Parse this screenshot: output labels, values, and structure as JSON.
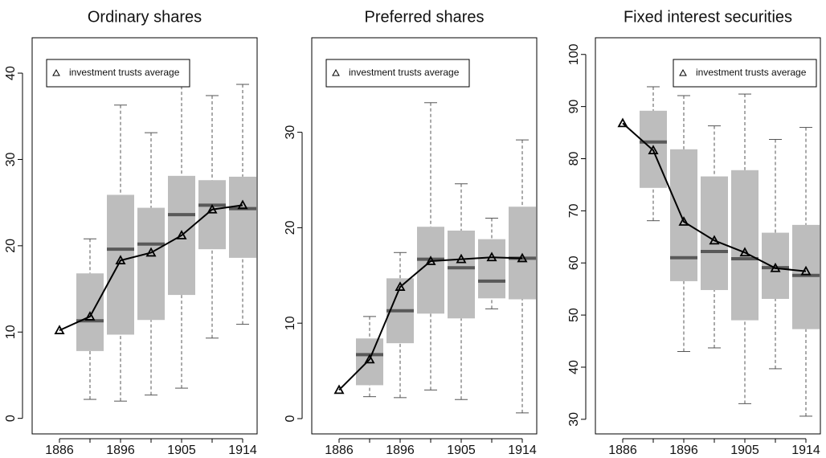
{
  "chart_data": [
    {
      "type": "box",
      "title": "Ordinary shares",
      "legend": "top-left",
      "box_color": "#bdbdbd",
      "median_color": "#595959",
      "categories": [
        "1886",
        null,
        "1896",
        null,
        "1905",
        null,
        "1914"
      ],
      "ylim": [
        -1.8,
        44.1
      ],
      "yticks": [
        0,
        10,
        20,
        30,
        40
      ],
      "boxes": {
        "low": [
          null,
          2.2,
          2.0,
          2.7,
          3.5,
          9.3,
          10.9
        ],
        "q1": [
          null,
          7.8,
          9.7,
          11.4,
          14.3,
          19.6,
          18.6
        ],
        "median": [
          null,
          11.3,
          19.6,
          20.2,
          23.6,
          24.7,
          24.3
        ],
        "q3": [
          null,
          16.8,
          25.9,
          24.4,
          28.1,
          27.6,
          28.0
        ],
        "high": [
          null,
          20.8,
          36.3,
          33.1,
          39.8,
          37.4,
          38.7
        ]
      },
      "series": [
        {
          "name": "investment trusts average",
          "color": "#000000",
          "values": [
            10.2,
            11.8,
            18.3,
            19.2,
            21.2,
            24.2,
            24.7
          ]
        }
      ]
    },
    {
      "type": "box",
      "title": "Preferred shares",
      "legend": "top-left",
      "box_color": "#bdbdbd",
      "median_color": "#595959",
      "categories": [
        "1886",
        null,
        "1896",
        null,
        "1905",
        null,
        "1914"
      ],
      "ylim": [
        -1.6,
        39.9
      ],
      "yticks": [
        0,
        10,
        20,
        30
      ],
      "boxes": {
        "low": [
          null,
          2.3,
          2.2,
          3.0,
          2.0,
          11.5,
          0.6
        ],
        "q1": [
          null,
          3.5,
          7.9,
          11.0,
          10.5,
          12.6,
          12.5
        ],
        "median": [
          null,
          6.7,
          11.3,
          16.7,
          15.8,
          14.4,
          16.8
        ],
        "q3": [
          null,
          8.4,
          14.7,
          20.1,
          19.7,
          18.8,
          22.2
        ],
        "high": [
          null,
          10.7,
          17.4,
          33.1,
          24.6,
          21.0,
          29.2
        ]
      },
      "series": [
        {
          "name": "investment trusts average",
          "color": "#000000",
          "values": [
            3.0,
            6.2,
            13.8,
            16.5,
            16.7,
            16.9,
            16.8
          ]
        }
      ]
    },
    {
      "type": "box",
      "title": "Fixed interest securities",
      "legend": "top-right",
      "box_color": "#bdbdbd",
      "median_color": "#595959",
      "categories": [
        "1886",
        null,
        "1896",
        null,
        "1905",
        null,
        "1914"
      ],
      "ylim": [
        27.2,
        103.2
      ],
      "yticks": [
        30,
        40,
        50,
        60,
        70,
        80,
        90,
        100
      ],
      "boxes": {
        "low": [
          null,
          68.1,
          43.0,
          43.7,
          33.0,
          39.7,
          30.6
        ],
        "q1": [
          null,
          74.4,
          56.5,
          54.8,
          49.0,
          53.1,
          47.3
        ],
        "median": [
          null,
          83.2,
          61.0,
          62.2,
          60.8,
          59.1,
          57.6
        ],
        "q3": [
          null,
          89.2,
          81.8,
          76.6,
          77.8,
          65.8,
          67.3
        ],
        "high": [
          null,
          93.8,
          92.1,
          86.3,
          92.4,
          83.7,
          86.0
        ]
      },
      "series": [
        {
          "name": "investment trusts average",
          "color": "#000000",
          "values": [
            86.8,
            81.6,
            67.9,
            64.3,
            62.0,
            59.0,
            58.4
          ]
        }
      ]
    }
  ]
}
